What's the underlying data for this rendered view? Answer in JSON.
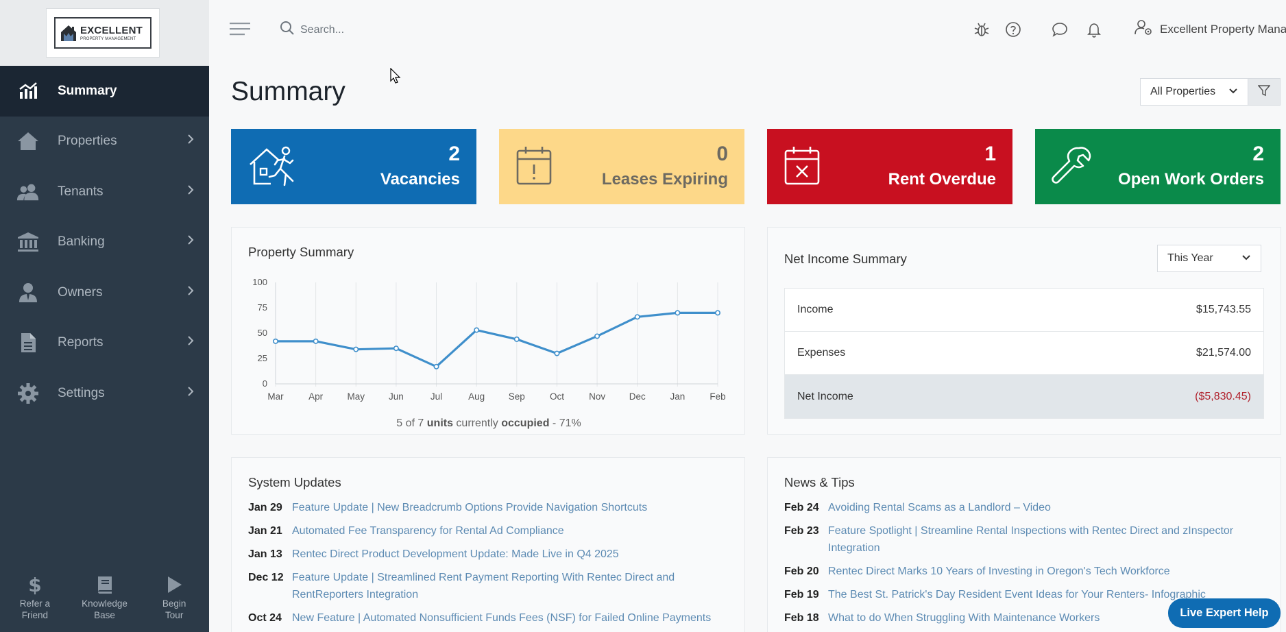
{
  "logo": {
    "title": "EXCELLENT",
    "subtitle": "PROPERTY MANAGEMENT"
  },
  "sidebar": {
    "items": [
      {
        "label": "Summary",
        "icon": "chart-icon"
      },
      {
        "label": "Properties",
        "icon": "home-icon"
      },
      {
        "label": "Tenants",
        "icon": "users-icon"
      },
      {
        "label": "Banking",
        "icon": "bank-icon"
      },
      {
        "label": "Owners",
        "icon": "user-tie-icon"
      },
      {
        "label": "Reports",
        "icon": "file-icon"
      },
      {
        "label": "Settings",
        "icon": "gear-icon"
      }
    ],
    "bottom": [
      {
        "line1": "Refer a",
        "line2": "Friend",
        "icon": "dollar-icon"
      },
      {
        "line1": "Knowledge",
        "line2": "Base",
        "icon": "book-icon"
      },
      {
        "line1": "Begin",
        "line2": "Tour",
        "icon": "play-icon"
      }
    ]
  },
  "header": {
    "search_placeholder": "Search...",
    "account_name": "Excellent Property Mana..."
  },
  "page": {
    "title": "Summary",
    "property_filter": "All Properties"
  },
  "stats": [
    {
      "value": "2",
      "label": "Vacancies",
      "color": "#0f6cb3"
    },
    {
      "value": "0",
      "label": "Leases Expiring",
      "color": "#fdd889"
    },
    {
      "value": "1",
      "label": "Rent Overdue",
      "color": "#c81020"
    },
    {
      "value": "2",
      "label": "Open Work Orders",
      "color": "#0a8a4a"
    }
  ],
  "property_summary": {
    "title": "Property Summary",
    "occupancy": {
      "prefix": "5 of 7 ",
      "units": "units",
      "middle": " currently ",
      "occupied": "occupied",
      "suffix": " - 71%"
    }
  },
  "chart_data": {
    "type": "line",
    "categories": [
      "Mar",
      "Apr",
      "May",
      "Jun",
      "Jul",
      "Aug",
      "Sep",
      "Oct",
      "Nov",
      "Dec",
      "Jan",
      "Feb"
    ],
    "values": [
      42,
      42,
      34,
      35,
      17,
      53,
      44,
      30,
      47,
      66,
      70,
      70
    ],
    "ylim": [
      0,
      100
    ],
    "yticks": [
      0,
      25,
      50,
      75,
      100
    ],
    "color": "#3f8fcb",
    "grid": "vertical"
  },
  "net_income": {
    "title": "Net Income Summary",
    "range": "This Year",
    "rows": [
      {
        "label": "Income",
        "value": "$15,743.55"
      },
      {
        "label": "Expenses",
        "value": "$21,574.00"
      },
      {
        "label": "Net Income",
        "value": "($5,830.45)"
      }
    ]
  },
  "system_updates": {
    "title": "System Updates",
    "items": [
      {
        "date": "Jan 29",
        "text": "Feature Update | New Breadcrumb Options Provide Navigation Shortcuts"
      },
      {
        "date": "Jan 21",
        "text": "Automated Fee Transparency for Rental Ad Compliance"
      },
      {
        "date": "Jan 13",
        "text": "Rentec Direct Product Development Update: Made Live in Q4 2025"
      },
      {
        "date": "Dec 12",
        "text": "Feature Update | Streamlined Rent Payment Reporting With Rentec Direct and RentReporters Integration"
      },
      {
        "date": "Oct 24",
        "text": "New Feature | Automated Nonsufficient Funds Fees (NSF) for Failed Online Payments"
      }
    ]
  },
  "news_tips": {
    "title": "News & Tips",
    "items": [
      {
        "date": "Feb 24",
        "text": "Avoiding Rental Scams as a Landlord – Video"
      },
      {
        "date": "Feb 23",
        "text": "Feature Spotlight | Streamline Rental Inspections with Rentec Direct and zInspector Integration"
      },
      {
        "date": "Feb 20",
        "text": "Rentec Direct Marks 10 Years of Investing in Oregon's Tech Workforce"
      },
      {
        "date": "Feb 19",
        "text": "The Best St. Patrick's Day Resident Event Ideas for Your Renters- Infographic"
      },
      {
        "date": "Feb 18",
        "text": "What to do When Struggling With Maintenance Workers"
      }
    ]
  },
  "help_button": "Live Expert Help"
}
